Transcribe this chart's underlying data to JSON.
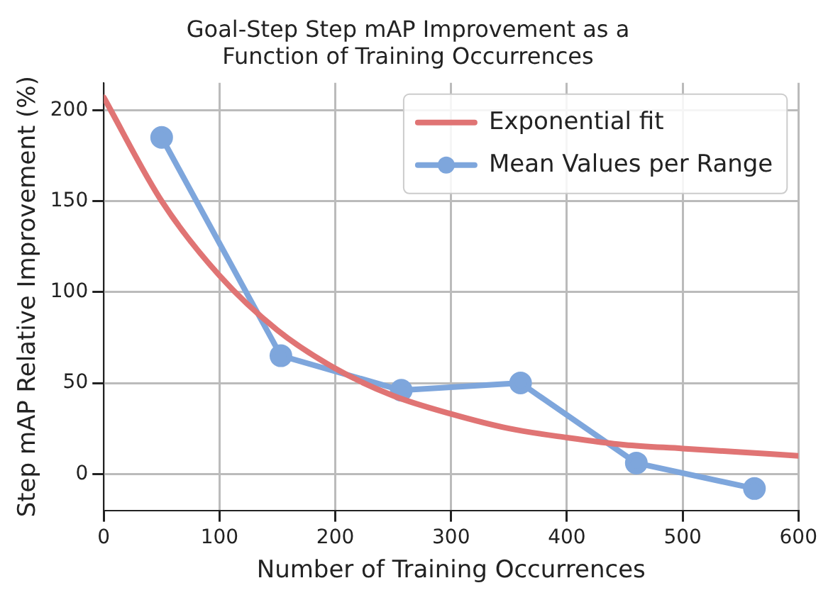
{
  "chart_data": {
    "type": "line",
    "title": "Goal-Step Step mAP Improvement as a\nFunction of Training Occurrences",
    "xlabel": "Number of Training Occurrences",
    "ylabel": "Step mAP Relative Improvement (%)",
    "xlim": [
      0,
      600
    ],
    "xticks": [
      0,
      100,
      200,
      300,
      400,
      500,
      600
    ],
    "ylim": [
      -20,
      215
    ],
    "yticks": [
      0,
      50,
      100,
      150,
      200
    ],
    "grid": true,
    "legend": "top right",
    "series": [
      {
        "name": "Exponential fit",
        "color": "#e07474",
        "marker": "none",
        "x": [
          0,
          50,
          100,
          150,
          200,
          250,
          300,
          350,
          400,
          450,
          500,
          550,
          600
        ],
        "values": [
          207,
          150,
          109,
          79,
          58,
          43,
          33,
          25,
          20,
          16,
          14,
          12,
          10
        ]
      },
      {
        "name": "Mean Values per Range",
        "color": "#7ea6dc",
        "marker": "circle",
        "x": [
          50,
          153,
          257,
          360,
          460,
          562
        ],
        "values": [
          185,
          65,
          46,
          50,
          6,
          -8
        ]
      }
    ]
  }
}
